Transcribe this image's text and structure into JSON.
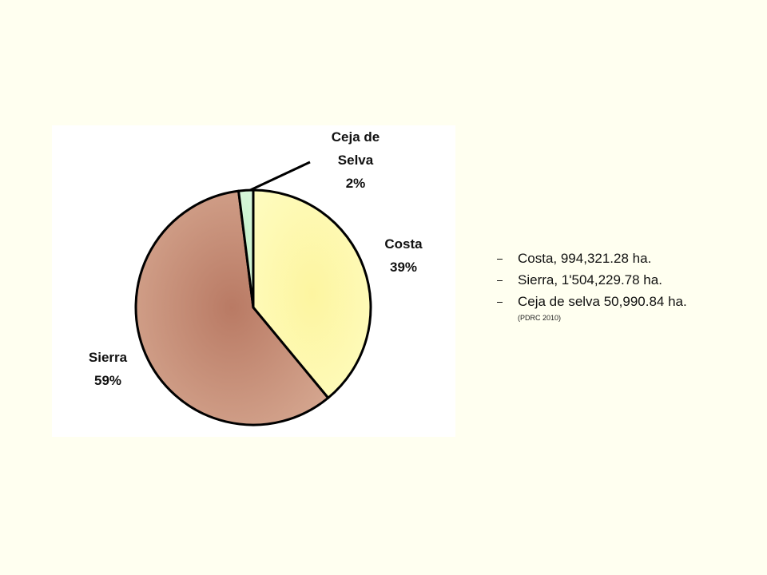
{
  "chart_data": {
    "type": "pie",
    "categories": [
      "Costa",
      "Sierra",
      "Ceja de Selva"
    ],
    "values": [
      39,
      59,
      2
    ],
    "value_labels": [
      "39%",
      "59%",
      "2%"
    ],
    "colors": [
      "#fdfaa6",
      "#d3a38b",
      "#d2f5d6"
    ]
  },
  "notes": {
    "items": [
      "Costa,  994,321.28 ha.",
      "Sierra, 1'504,229.78 ha.",
      "Ceja de selva  50,990.84 ha."
    ],
    "source": "(PDRC 2010)"
  }
}
